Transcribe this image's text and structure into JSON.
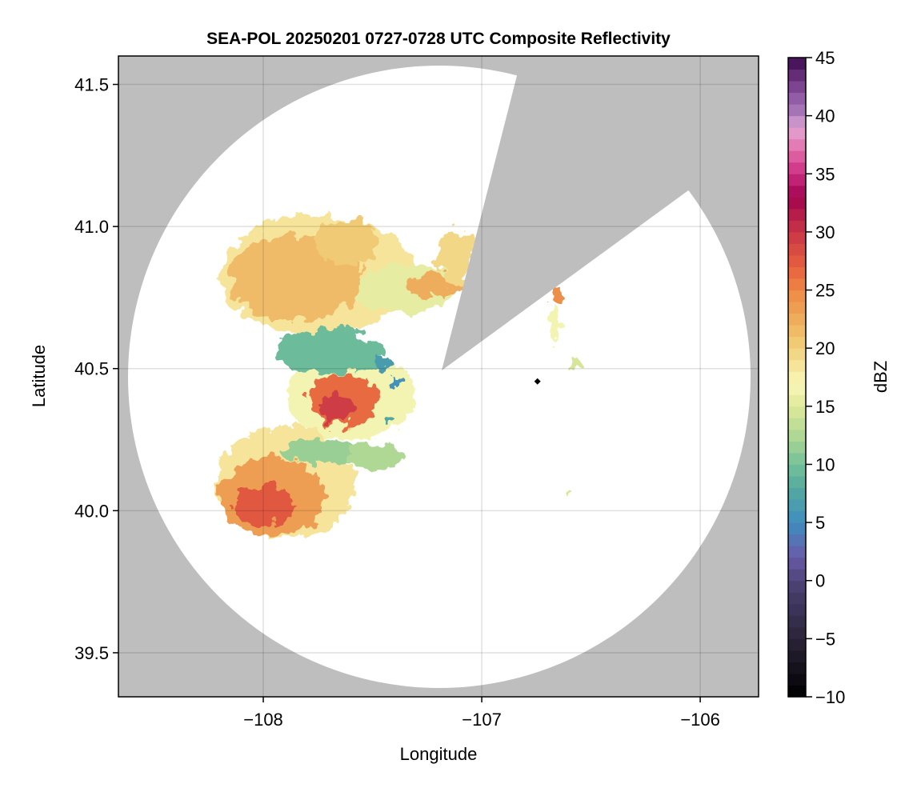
{
  "chart_data": {
    "type": "heatmap",
    "title": "SEA-POL 20250201 0727-0728 UTC Composite Reflectivity",
    "xlabel": "Longitude",
    "ylabel": "Latitude",
    "xlim": [
      -108.663,
      -105.733
    ],
    "ylim": [
      39.345,
      41.6
    ],
    "xticks": [
      -108,
      -107,
      -106
    ],
    "xtick_labels": [
      "−108",
      "−107",
      "−106"
    ],
    "yticks": [
      39.5,
      40.0,
      40.5,
      41.0,
      41.5
    ],
    "ytick_labels": [
      "39.5",
      "40.0",
      "40.5",
      "41.0",
      "41.5"
    ],
    "grid": true,
    "colorbar": {
      "label": "dBZ",
      "range": [
        -10,
        45
      ],
      "ticks": [
        -10,
        -5,
        0,
        5,
        10,
        15,
        20,
        25,
        30,
        35,
        40,
        45
      ],
      "tick_labels": [
        "−10",
        "−5",
        "0",
        "5",
        "10",
        "15",
        "20",
        "25",
        "30",
        "35",
        "40",
        "45"
      ],
      "stops": [
        [
          -10,
          "#000000"
        ],
        [
          -5,
          "#2a2438"
        ],
        [
          0,
          "#4e4477"
        ],
        [
          2,
          "#6a5aa8"
        ],
        [
          5,
          "#3f8dc0"
        ],
        [
          8,
          "#54aa9c"
        ],
        [
          10,
          "#74c09a"
        ],
        [
          12,
          "#a5d493"
        ],
        [
          15,
          "#dfe99a"
        ],
        [
          17,
          "#f9f7b8"
        ],
        [
          20,
          "#f1d17c"
        ],
        [
          22,
          "#eeb460"
        ],
        [
          25,
          "#ee8845"
        ],
        [
          27,
          "#e6603f"
        ],
        [
          30,
          "#c93546"
        ],
        [
          33,
          "#a0044e"
        ],
        [
          35,
          "#cc2d80"
        ],
        [
          37,
          "#e36caa"
        ],
        [
          39,
          "#e2a6d3"
        ],
        [
          40,
          "#ad80be"
        ],
        [
          42,
          "#8a509e"
        ],
        [
          45,
          "#3d0a4e"
        ]
      ]
    },
    "no_data_color": "#bebebe",
    "echoes": [
      {
        "lon": -107.75,
        "lat": 40.83,
        "rlon": 0.45,
        "rlat": 0.21,
        "dbz": 18
      },
      {
        "lon": -107.85,
        "lat": 40.82,
        "rlon": 0.3,
        "rlat": 0.15,
        "dbz": 21
      },
      {
        "lon": -107.62,
        "lat": 40.95,
        "rlon": 0.15,
        "rlat": 0.08,
        "dbz": 20
      },
      {
        "lon": -107.35,
        "lat": 40.78,
        "rlon": 0.22,
        "rlat": 0.09,
        "dbz": 15
      },
      {
        "lon": -107.22,
        "lat": 40.79,
        "rlon": 0.13,
        "rlat": 0.04,
        "dbz": 22
      },
      {
        "lon": -107.12,
        "lat": 40.9,
        "rlon": 0.08,
        "rlat": 0.1,
        "dbz": 19
      },
      {
        "lon": -107.6,
        "lat": 40.4,
        "rlon": 0.3,
        "rlat": 0.15,
        "dbz": 16
      },
      {
        "lon": -107.7,
        "lat": 40.56,
        "rlon": 0.25,
        "rlat": 0.08,
        "dbz": 9
      },
      {
        "lon": -107.63,
        "lat": 40.39,
        "rlon": 0.16,
        "rlat": 0.09,
        "dbz": 26
      },
      {
        "lon": -107.66,
        "lat": 40.36,
        "rlon": 0.08,
        "rlat": 0.05,
        "dbz": 29
      },
      {
        "lon": -107.9,
        "lat": 40.1,
        "rlon": 0.32,
        "rlat": 0.2,
        "dbz": 18
      },
      {
        "lon": -107.74,
        "lat": 40.21,
        "rlon": 0.18,
        "rlat": 0.04,
        "dbz": 11
      },
      {
        "lon": -107.48,
        "lat": 40.19,
        "rlon": 0.12,
        "rlat": 0.05,
        "dbz": 12
      },
      {
        "lon": -107.96,
        "lat": 40.05,
        "rlon": 0.24,
        "rlat": 0.14,
        "dbz": 23
      },
      {
        "lon": -108.0,
        "lat": 40.02,
        "rlon": 0.14,
        "rlat": 0.07,
        "dbz": 27
      },
      {
        "lon": -107.45,
        "lat": 40.52,
        "rlon": 0.03,
        "rlat": 0.02,
        "dbz": 6
      },
      {
        "lon": -107.4,
        "lat": 40.45,
        "rlon": 0.02,
        "rlat": 0.02,
        "dbz": 5
      },
      {
        "lon": -107.42,
        "lat": 40.32,
        "rlon": 0.02,
        "rlat": 0.015,
        "dbz": 7
      },
      {
        "lon": -106.66,
        "lat": 40.76,
        "rlon": 0.03,
        "rlat": 0.03,
        "dbz": 24
      },
      {
        "lon": -106.67,
        "lat": 40.65,
        "rlon": 0.02,
        "rlat": 0.06,
        "dbz": 16
      },
      {
        "lon": -106.58,
        "lat": 40.52,
        "rlon": 0.025,
        "rlat": 0.02,
        "dbz": 14
      },
      {
        "lon": -106.6,
        "lat": 40.07,
        "rlon": 0.01,
        "rlat": 0.01,
        "dbz": 14
      }
    ],
    "marker": {
      "lon": -106.745,
      "lat": 40.455,
      "color": "#000000"
    }
  }
}
